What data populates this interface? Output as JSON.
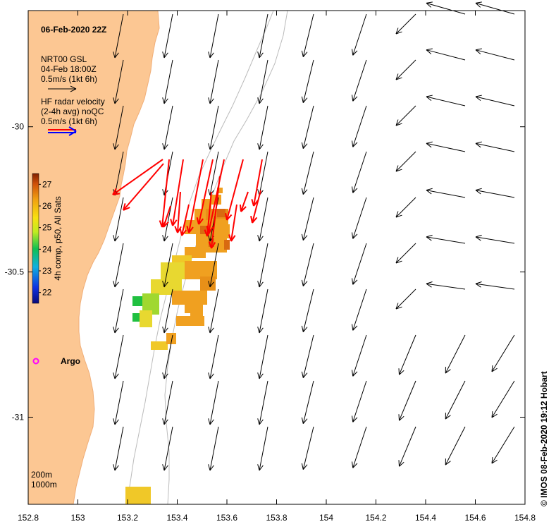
{
  "title": "06-Feb-2020 22Z",
  "gsl_legend": {
    "line1": "NRT00 GSL",
    "line2": "04-Feb 18:00Z",
    "line3": "0.5m/s (1kt 6h)"
  },
  "hf_legend": {
    "line1": "HF radar velocity",
    "line2": "(2-4h avg) noQC",
    "line3": "0.5m/s (1kt 6h)"
  },
  "colorbar": {
    "title": "4h comp, p50, All Sats",
    "ticks": [
      "22",
      "23",
      "24",
      "25",
      "26",
      "27"
    ],
    "range": [
      21.5,
      27.5
    ]
  },
  "argo_label": "Argo",
  "depth_legend": {
    "line1": "200m",
    "line2": "1000m"
  },
  "credit": "© IMOS 08-Feb-2020 19:12 Hobart",
  "x_axis": {
    "range": [
      152.8,
      154.8
    ],
    "ticks": [
      "152.8",
      "153",
      "153.2",
      "153.4",
      "153.6",
      "153.8",
      "154",
      "154.2",
      "154.4",
      "154.6",
      "154.8"
    ]
  },
  "y_axis": {
    "range": [
      -29.6,
      -31.3
    ],
    "ticks": [
      "-30",
      "-30.5",
      "-31"
    ]
  },
  "colors": {
    "land": "#fcc793",
    "gsl_arrow": "#000000",
    "hf_arrow": "#ff0000",
    "hf_arrow_outline": "#0000ff",
    "argo": "#ff00ff",
    "isobath": "#bbbbbb"
  }
}
